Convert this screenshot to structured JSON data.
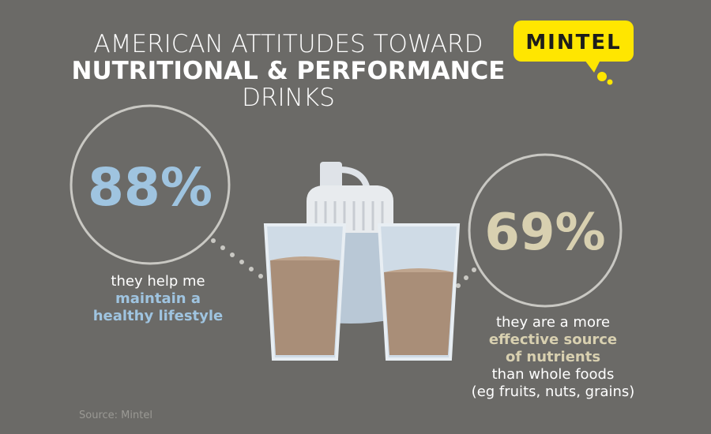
{
  "header": {
    "title_lines": [
      "AMERICAN ATTITUDES TOWARD",
      "NUTRITIONAL & PERFORMANCE",
      "DRINKS"
    ],
    "logo": "MINTEL"
  },
  "stats": [
    {
      "value": "88%",
      "caption_lines": [
        "they help me",
        "maintain a",
        "healthy lifestyle"
      ]
    },
    {
      "value": "69%",
      "caption_lines": [
        "they are a more",
        "effective source",
        "of nutrients",
        "than whole foods",
        "(eg fruits, nuts, grains)"
      ]
    }
  ],
  "source": "Source: Mintel"
}
